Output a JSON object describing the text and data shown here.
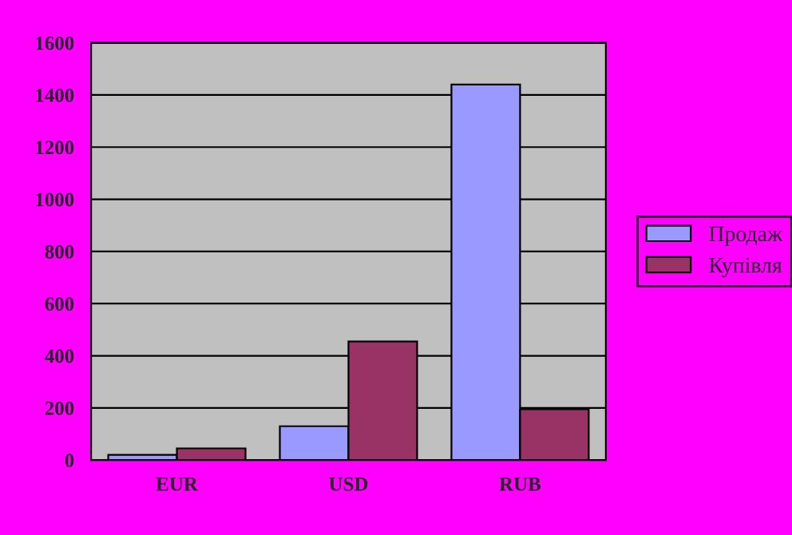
{
  "chart_data": {
    "type": "bar",
    "categories": [
      "EUR",
      "USD",
      "RUB"
    ],
    "series": [
      {
        "name": "Продаж",
        "color": "#9999ff",
        "values": [
          20,
          130,
          1440
        ]
      },
      {
        "name": "Купівля",
        "color": "#993366",
        "values": [
          45,
          455,
          195
        ]
      }
    ],
    "ylim": [
      0,
      1600
    ],
    "yticks": [
      0,
      200,
      400,
      600,
      800,
      1000,
      1200,
      1400,
      1600
    ],
    "grid": "y",
    "legend": "right"
  }
}
